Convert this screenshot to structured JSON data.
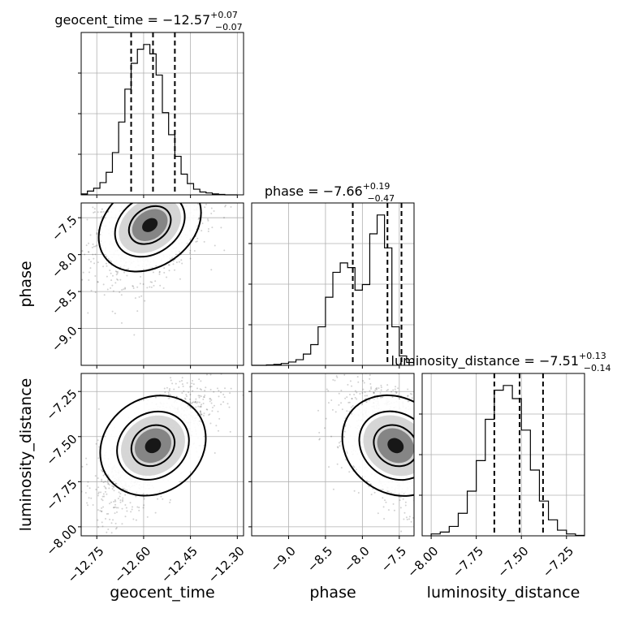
{
  "chart_data": {
    "type": "corner",
    "parameters": [
      {
        "name": "geocent_time",
        "title_main": "geocent_time = −12.57",
        "title_sup": "+0.07",
        "title_sub": "−0.07",
        "range": [
          -12.8,
          -12.28
        ],
        "ticks": [
          -12.75,
          -12.6,
          -12.45,
          -12.3
        ],
        "tick_labels": [
          "−12.75",
          "−12.60",
          "−12.45",
          "−12.30"
        ],
        "quantiles": [
          -12.64,
          -12.57,
          -12.5
        ],
        "hist_bins": [
          -12.8,
          -12.78,
          -12.76,
          -12.74,
          -12.72,
          -12.7,
          -12.68,
          -12.66,
          -12.64,
          -12.62,
          -12.6,
          -12.58,
          -12.56,
          -12.54,
          -12.52,
          -12.5,
          -12.48,
          -12.46,
          -12.44,
          -12.42,
          -12.4,
          -12.38,
          -12.36,
          -12.34,
          -12.32,
          -12.3
        ],
        "hist_counts": [
          2,
          8,
          14,
          26,
          48,
          90,
          155,
          225,
          280,
          310,
          320,
          300,
          255,
          175,
          128,
          82,
          44,
          24,
          12,
          6,
          4,
          2,
          1,
          0,
          0
        ]
      },
      {
        "name": "phase",
        "title_main": "phase = −7.66",
        "title_sup": "+0.19",
        "title_sub": "−0.47",
        "range": [
          -9.5,
          -7.3
        ],
        "ticks": [
          -9.0,
          -8.5,
          -8.0,
          -7.5
        ],
        "tick_labels": [
          "−9.0",
          "−8.5",
          "−8.0",
          "−7.5"
        ],
        "quantiles": [
          -8.13,
          -7.66,
          -7.47
        ],
        "hist_bins": [
          -9.5,
          -9.4,
          -9.3,
          -9.2,
          -9.1,
          -9.0,
          -8.9,
          -8.8,
          -8.7,
          -8.6,
          -8.5,
          -8.4,
          -8.3,
          -8.2,
          -8.1,
          -8.0,
          -7.9,
          -7.8,
          -7.7,
          -7.6,
          -7.5,
          -7.4,
          -7.3
        ],
        "hist_counts": [
          0,
          0,
          1,
          2,
          4,
          7,
          12,
          24,
          44,
          82,
          145,
          198,
          218,
          208,
          160,
          172,
          280,
          320,
          250,
          82,
          20,
          6
        ]
      },
      {
        "name": "luminosity_distance",
        "title_main": "luminosity_distance = −7.51",
        "title_sup": "+0.13",
        "title_sub": "−0.14",
        "range": [
          -8.05,
          -7.15
        ],
        "ticks": [
          -8.0,
          -7.75,
          -7.5,
          -7.25
        ],
        "tick_labels": [
          "−8.00",
          "−7.75",
          "−7.50",
          "−7.25"
        ],
        "quantiles": [
          -7.65,
          -7.51,
          -7.38
        ],
        "hist_bins": [
          -8.0,
          -7.95,
          -7.9,
          -7.85,
          -7.8,
          -7.75,
          -7.7,
          -7.65,
          -7.6,
          -7.55,
          -7.5,
          -7.45,
          -7.4,
          -7.35,
          -7.3,
          -7.25,
          -7.2,
          -7.15
        ],
        "hist_counts": [
          4,
          8,
          20,
          48,
          95,
          160,
          248,
          310,
          320,
          292,
          225,
          140,
          74,
          34,
          12,
          4,
          1
        ]
      }
    ],
    "grid": true,
    "samples_2d": "scatter of posterior samples with 2D histogram and 3 contour levels"
  }
}
